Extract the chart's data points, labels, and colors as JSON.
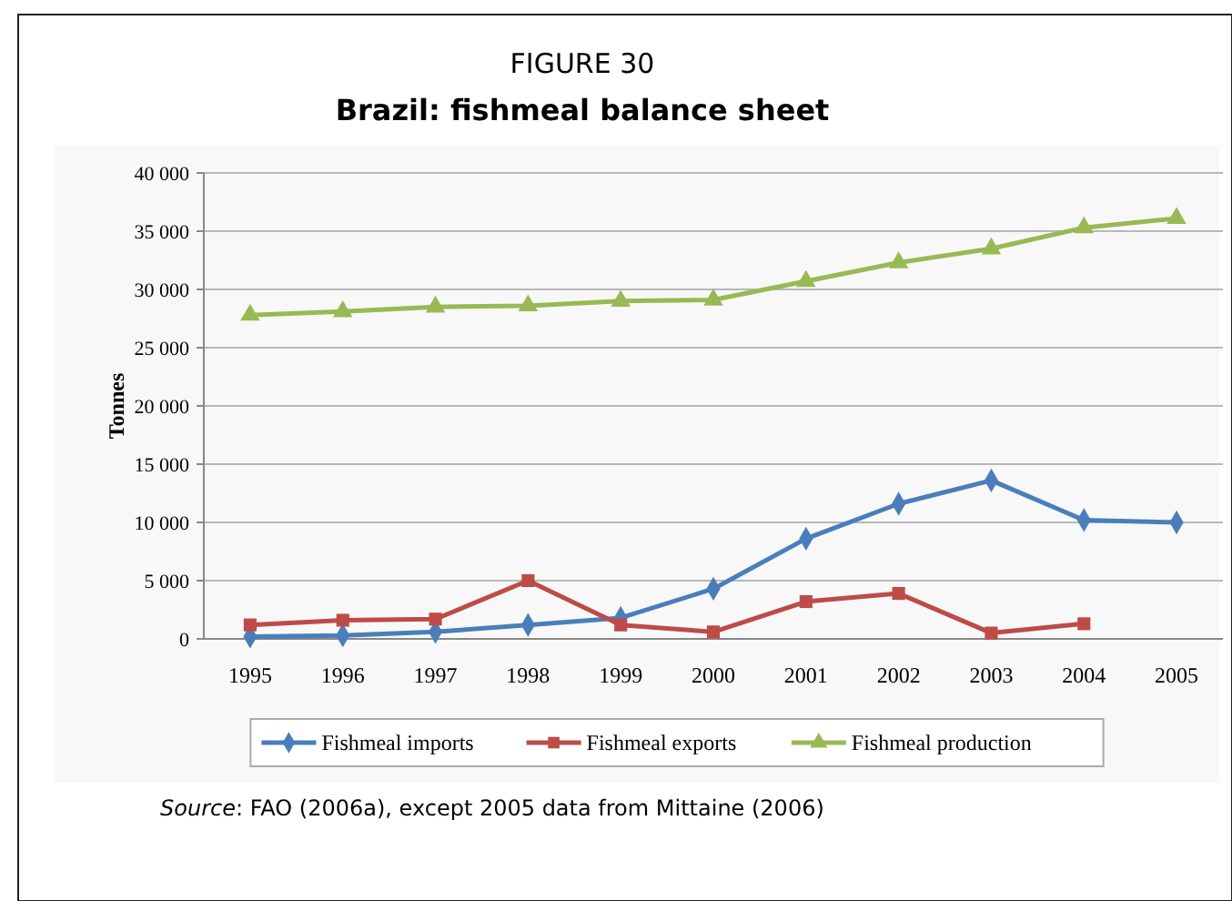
{
  "chart_data": {
    "type": "line",
    "title": "FIGURE 30",
    "subtitle": "Brazil: fishmeal balance sheet",
    "ylabel": "Tonnes",
    "categories": [
      "1995",
      "1996",
      "1997",
      "1998",
      "1999",
      "2000",
      "2001",
      "2002",
      "2003",
      "2004",
      "2005"
    ],
    "series": [
      {
        "name": "Fishmeal imports",
        "color": "#4a7ebb",
        "marker": "diamond",
        "values": [
          200,
          300,
          600,
          1200,
          1800,
          4300,
          8600,
          11600,
          13600,
          10200,
          10000
        ]
      },
      {
        "name": "Fishmeal exports",
        "color": "#be4b48",
        "marker": "square",
        "values": [
          1200,
          1600,
          1700,
          5000,
          1200,
          600,
          3200,
          3900,
          500,
          1300,
          null
        ]
      },
      {
        "name": "Fishmeal production",
        "color": "#98b954",
        "marker": "triangle",
        "values": [
          27800,
          28100,
          28500,
          28600,
          29000,
          29100,
          30700,
          32300,
          33500,
          35300,
          36100
        ]
      }
    ],
    "ylim": [
      0,
      40000
    ],
    "yticks": [
      0,
      {
        "value": 5000,
        "label": "5 000"
      },
      {
        "value": 10000,
        "label": "10 000"
      },
      {
        "value": 15000,
        "label": "15 000"
      },
      {
        "value": 20000,
        "label": "20 000"
      },
      {
        "value": 25000,
        "label": "25 000"
      },
      {
        "value": 30000,
        "label": "30 000"
      },
      {
        "value": 35000,
        "label": "35 000"
      },
      {
        "value": 40000,
        "label": "40 000"
      }
    ],
    "grid": "y",
    "legend": "bottom",
    "line_style": "solid",
    "annotations": [
      "Source: FAO (2006a), except 2005 data from Mittaine (2006)"
    ]
  }
}
